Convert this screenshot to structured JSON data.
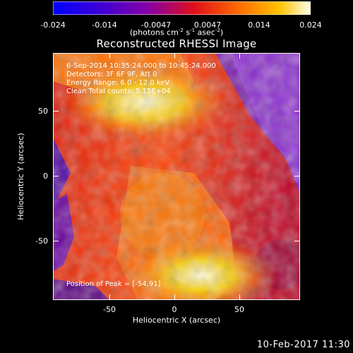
{
  "colorbar": {
    "ticks": [
      "-0.024",
      "-0.014",
      "-0.0047",
      "0.0047",
      "0.014",
      "0.024"
    ],
    "units_main": "(photons cm",
    "units_exp1": "-2",
    "units_mid1": " s",
    "units_exp2": "-1",
    "units_mid2": " asec",
    "units_exp3": "-2",
    "units_end": ")"
  },
  "title": "Reconstructed RHESSI Image",
  "annotations": {
    "time": "6-Sep-2014 10:35:24.000 to 10:45:24.000",
    "detectors": "Detectors: 3F 6F 9F, Att 0",
    "energy": "Energy Range: 6.0 - 12.0 keV",
    "clean": "Clean     Total counts: 5.15E+04",
    "peak": "Position of Peak = [-54,91]"
  },
  "axes": {
    "x_label": "Heliocentric X (arcsec)",
    "y_label": "Heliocentric Y (arcsec)",
    "x_ticks": [
      "-50",
      "0",
      "50"
    ],
    "y_ticks": [
      "50",
      "0",
      "-50"
    ]
  },
  "footer_date": "10-Feb-2017 11:30",
  "colors": {
    "background": "#000000",
    "colormap": [
      "#0000ff",
      "#5a00c8",
      "#a0008c",
      "#e01010",
      "#ff6000",
      "#ffc000",
      "#ffffe0"
    ]
  }
}
